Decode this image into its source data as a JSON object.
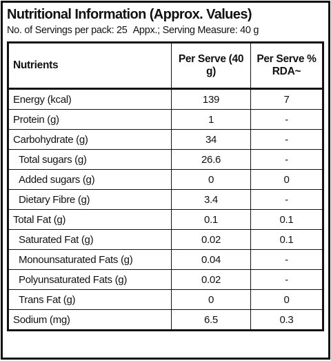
{
  "header": {
    "title": "Nutritional Information (Approx. Values)",
    "servings": "No. of Servings per pack: 25",
    "measure": "Appx.; Serving Measure: 40 g"
  },
  "table": {
    "columns": [
      "Nutrients",
      "Per Serve (40 g)",
      "Per Serve % RDA~"
    ],
    "rows": [
      [
        "Energy (kcal)",
        139,
        7
      ],
      [
        "Protein (g)",
        1,
        "-"
      ],
      [
        "Carbohydrate (g)",
        34,
        "-"
      ],
      [
        "Total sugars (g)",
        26.6,
        "-"
      ],
      [
        "Added sugars (g)",
        0,
        0
      ],
      [
        "Dietary Fibre (g)",
        3.4,
        "-"
      ],
      [
        "Total Fat (g)",
        0.1,
        0.1
      ],
      [
        "Saturated Fat (g)",
        0.02,
        0.1
      ],
      [
        "Monounsaturated Fats (g)",
        0.04,
        "-"
      ],
      [
        "Polyunsaturated Fats (g)",
        0.02,
        "-"
      ],
      [
        "Trans Fat (g)",
        0,
        0
      ],
      [
        "Sodium (mg)",
        6.5,
        0.3
      ]
    ]
  }
}
